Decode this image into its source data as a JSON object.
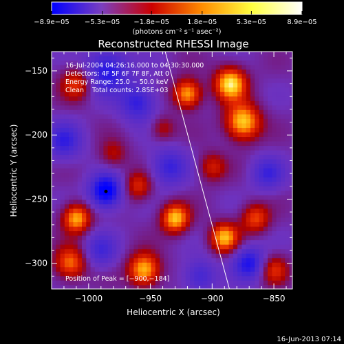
{
  "chart_data": {
    "type": "heatmap",
    "title": "Reconstructed RHESSI Image",
    "xlabel": "Heliocentric X (arcsec)",
    "ylabel": "Heliocentric Y (arcsec)",
    "xlim": [
      -1030,
      -835
    ],
    "ylim": [
      -320,
      -135
    ],
    "x_ticks": [
      -1000,
      -950,
      -900,
      -850
    ],
    "x_tick_labels": [
      "−1000",
      "−950",
      "−900",
      "−850"
    ],
    "y_ticks": [
      -150,
      -200,
      -250,
      -300
    ],
    "y_tick_labels": [
      "−150",
      "−200",
      "−250",
      "−300"
    ],
    "colorbar": {
      "ticks": [
        "−8.9e−05",
        "−5.3e−05",
        "−1.8e−05",
        "1.8e−05",
        "5.3e−05",
        "8.9e−05"
      ],
      "tick_values": [
        -8.9e-05,
        -5.3e-05,
        -1.8e-05,
        1.8e-05,
        5.3e-05,
        8.9e-05
      ],
      "range": [
        -8.9e-05,
        8.9e-05
      ],
      "units": "(photons cm⁻² s⁻¹ asec⁻²)",
      "colors": [
        "#0000ff",
        "#7b3fbf",
        "#cc0000",
        "#ff8c00",
        "#ffff40",
        "#ffffff"
      ]
    },
    "annotations": [
      "16-Jul-2004 04:26:16.000 to 04:30:30.000",
      "Detectors: 4F 5F 6F 7F 8F, Att 0",
      "Energy Range: 25.0 − 50.0 keV",
      "Clean    Total counts: 2.85E+03"
    ],
    "peak_label": "Position of Peak = [−900,−184]",
    "peak_position": [
      -900,
      -184
    ],
    "limb_line": [
      [
        -938,
        -135
      ],
      [
        -886,
        -320
      ]
    ],
    "min_marker": [
      -986,
      -244
    ],
    "bright_sources": [
      {
        "x": -885,
        "y": -160,
        "amp": 1.0,
        "sigma": 9
      },
      {
        "x": -875,
        "y": -190,
        "amp": 0.95,
        "sigma": 10
      },
      {
        "x": -920,
        "y": -168,
        "amp": 0.85,
        "sigma": 8
      },
      {
        "x": -1010,
        "y": -160,
        "amp": 0.55,
        "sigma": 9
      },
      {
        "x": -1010,
        "y": -265,
        "amp": 0.85,
        "sigma": 8
      },
      {
        "x": -930,
        "y": -265,
        "amp": 0.9,
        "sigma": 8
      },
      {
        "x": -890,
        "y": -280,
        "amp": 0.85,
        "sigma": 8
      },
      {
        "x": -955,
        "y": -305,
        "amp": 0.9,
        "sigma": 9
      },
      {
        "x": -1015,
        "y": -300,
        "amp": 0.7,
        "sigma": 9
      },
      {
        "x": -865,
        "y": -265,
        "amp": 0.6,
        "sigma": 8
      },
      {
        "x": -960,
        "y": -240,
        "amp": 0.5,
        "sigma": 8
      },
      {
        "x": -980,
        "y": -215,
        "amp": 0.35,
        "sigma": 8
      },
      {
        "x": -900,
        "y": -225,
        "amp": 0.45,
        "sigma": 8
      },
      {
        "x": -850,
        "y": -305,
        "amp": 0.5,
        "sigma": 8
      },
      {
        "x": -940,
        "y": -195,
        "amp": 0.35,
        "sigma": 7
      }
    ],
    "dark_sources": [
      {
        "x": -986,
        "y": -244,
        "amp": -1.0,
        "sigma": 9
      },
      {
        "x": -985,
        "y": -150,
        "amp": -0.7,
        "sigma": 12
      },
      {
        "x": -960,
        "y": -175,
        "amp": -0.6,
        "sigma": 10
      },
      {
        "x": -1020,
        "y": -205,
        "amp": -0.55,
        "sigma": 10
      },
      {
        "x": -935,
        "y": -225,
        "amp": -0.55,
        "sigma": 10
      },
      {
        "x": -855,
        "y": -230,
        "amp": -0.5,
        "sigma": 9
      },
      {
        "x": -870,
        "y": -300,
        "amp": -0.7,
        "sigma": 9
      },
      {
        "x": -990,
        "y": -290,
        "amp": -0.45,
        "sigma": 9
      },
      {
        "x": -910,
        "y": -310,
        "amp": -0.5,
        "sigma": 9
      }
    ]
  },
  "footer_date": "16-Jun-2013 07:14"
}
